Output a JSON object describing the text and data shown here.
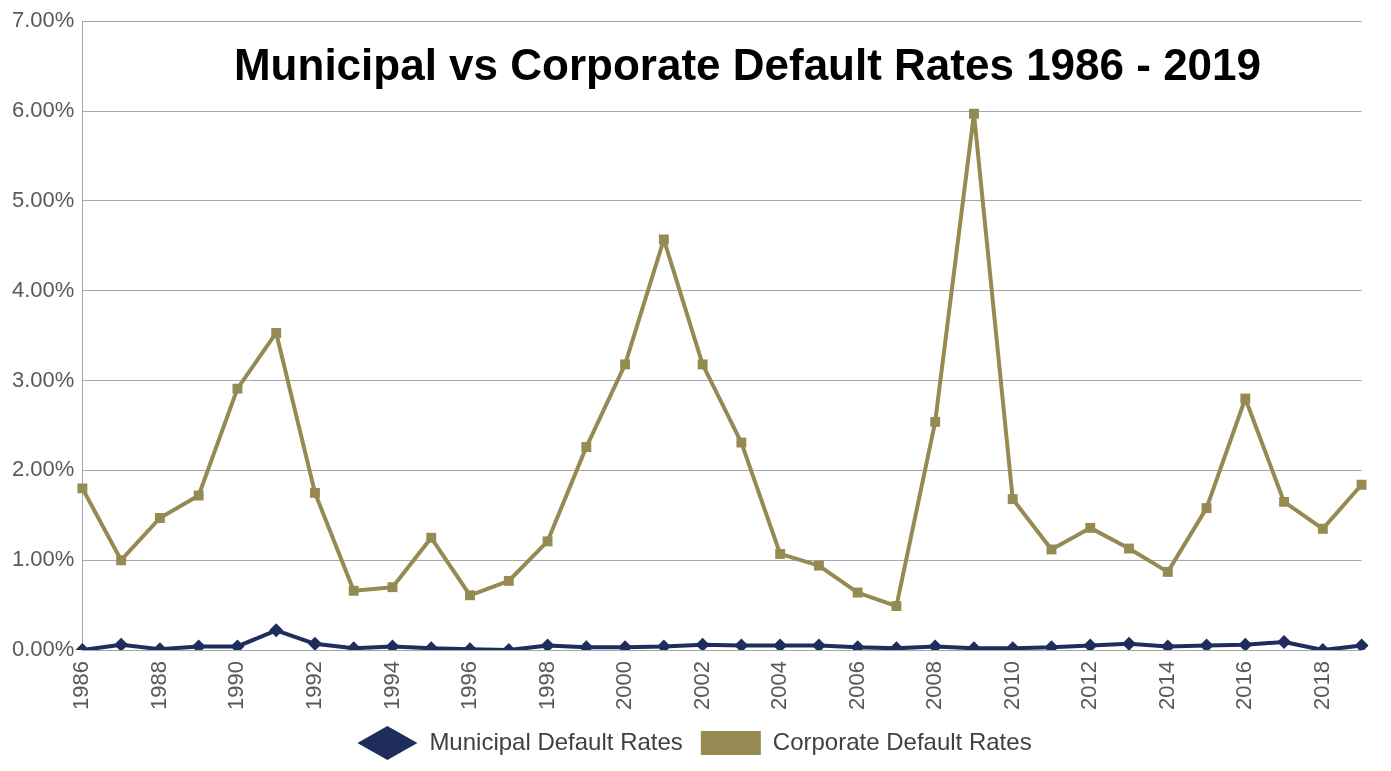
{
  "chart_data": {
    "type": "line",
    "title": "Municipal vs Corporate Default Rates 1986 - 2019",
    "categories": [
      "1986",
      null,
      "1988",
      null,
      "1990",
      null,
      "1992",
      null,
      "1994",
      null,
      "1996",
      null,
      "1998",
      null,
      "2000",
      null,
      "2002",
      null,
      "2004",
      null,
      "2006",
      null,
      "2008",
      null,
      "2010",
      null,
      "2012",
      null,
      "2014",
      null,
      "2016",
      null,
      "2018",
      null
    ],
    "series": [
      {
        "name": "Municipal Default Rates",
        "color": "#1f2d5c",
        "marker": "diamond",
        "values": [
          0,
          0.06,
          0.01,
          0.04,
          0.04,
          0.22,
          0.07,
          0.02,
          0.04,
          0.02,
          0.01,
          0,
          0.05,
          0.03,
          0.03,
          0.04,
          0.06,
          0.05,
          0.05,
          0.05,
          0.03,
          0.02,
          0.04,
          0.02,
          0.02,
          0.03,
          0.05,
          0.07,
          0.04,
          0.05,
          0.06,
          0.09,
          0,
          0.05
        ]
      },
      {
        "name": "Corporate Default Rates",
        "color": "#958b52",
        "marker": "square",
        "values": [
          1.8,
          1.0,
          1.47,
          1.72,
          2.91,
          3.53,
          1.75,
          0.66,
          0.7,
          1.25,
          0.61,
          0.77,
          1.21,
          2.26,
          3.18,
          4.57,
          3.18,
          2.31,
          1.07,
          0.94,
          0.64,
          0.49,
          2.54,
          5.97,
          1.68,
          1.12,
          1.36,
          1.13,
          0.87,
          1.58,
          2.8,
          1.65,
          1.35,
          1.84
        ]
      }
    ],
    "ylim": [
      0,
      7
    ],
    "yticks": [
      {
        "value": 0,
        "label": "0.00%"
      },
      {
        "value": 1,
        "label": "1.00%"
      },
      {
        "value": 2,
        "label": "2.00%"
      },
      {
        "value": 3,
        "label": "3.00%"
      },
      {
        "value": 4,
        "label": "4.00%"
      },
      {
        "value": 5,
        "label": "5.00%"
      },
      {
        "value": 6,
        "label": "6.00%"
      },
      {
        "value": 7,
        "label": "7.00%"
      }
    ],
    "grid": "y",
    "legend": "bottom",
    "line_style": "solid"
  }
}
